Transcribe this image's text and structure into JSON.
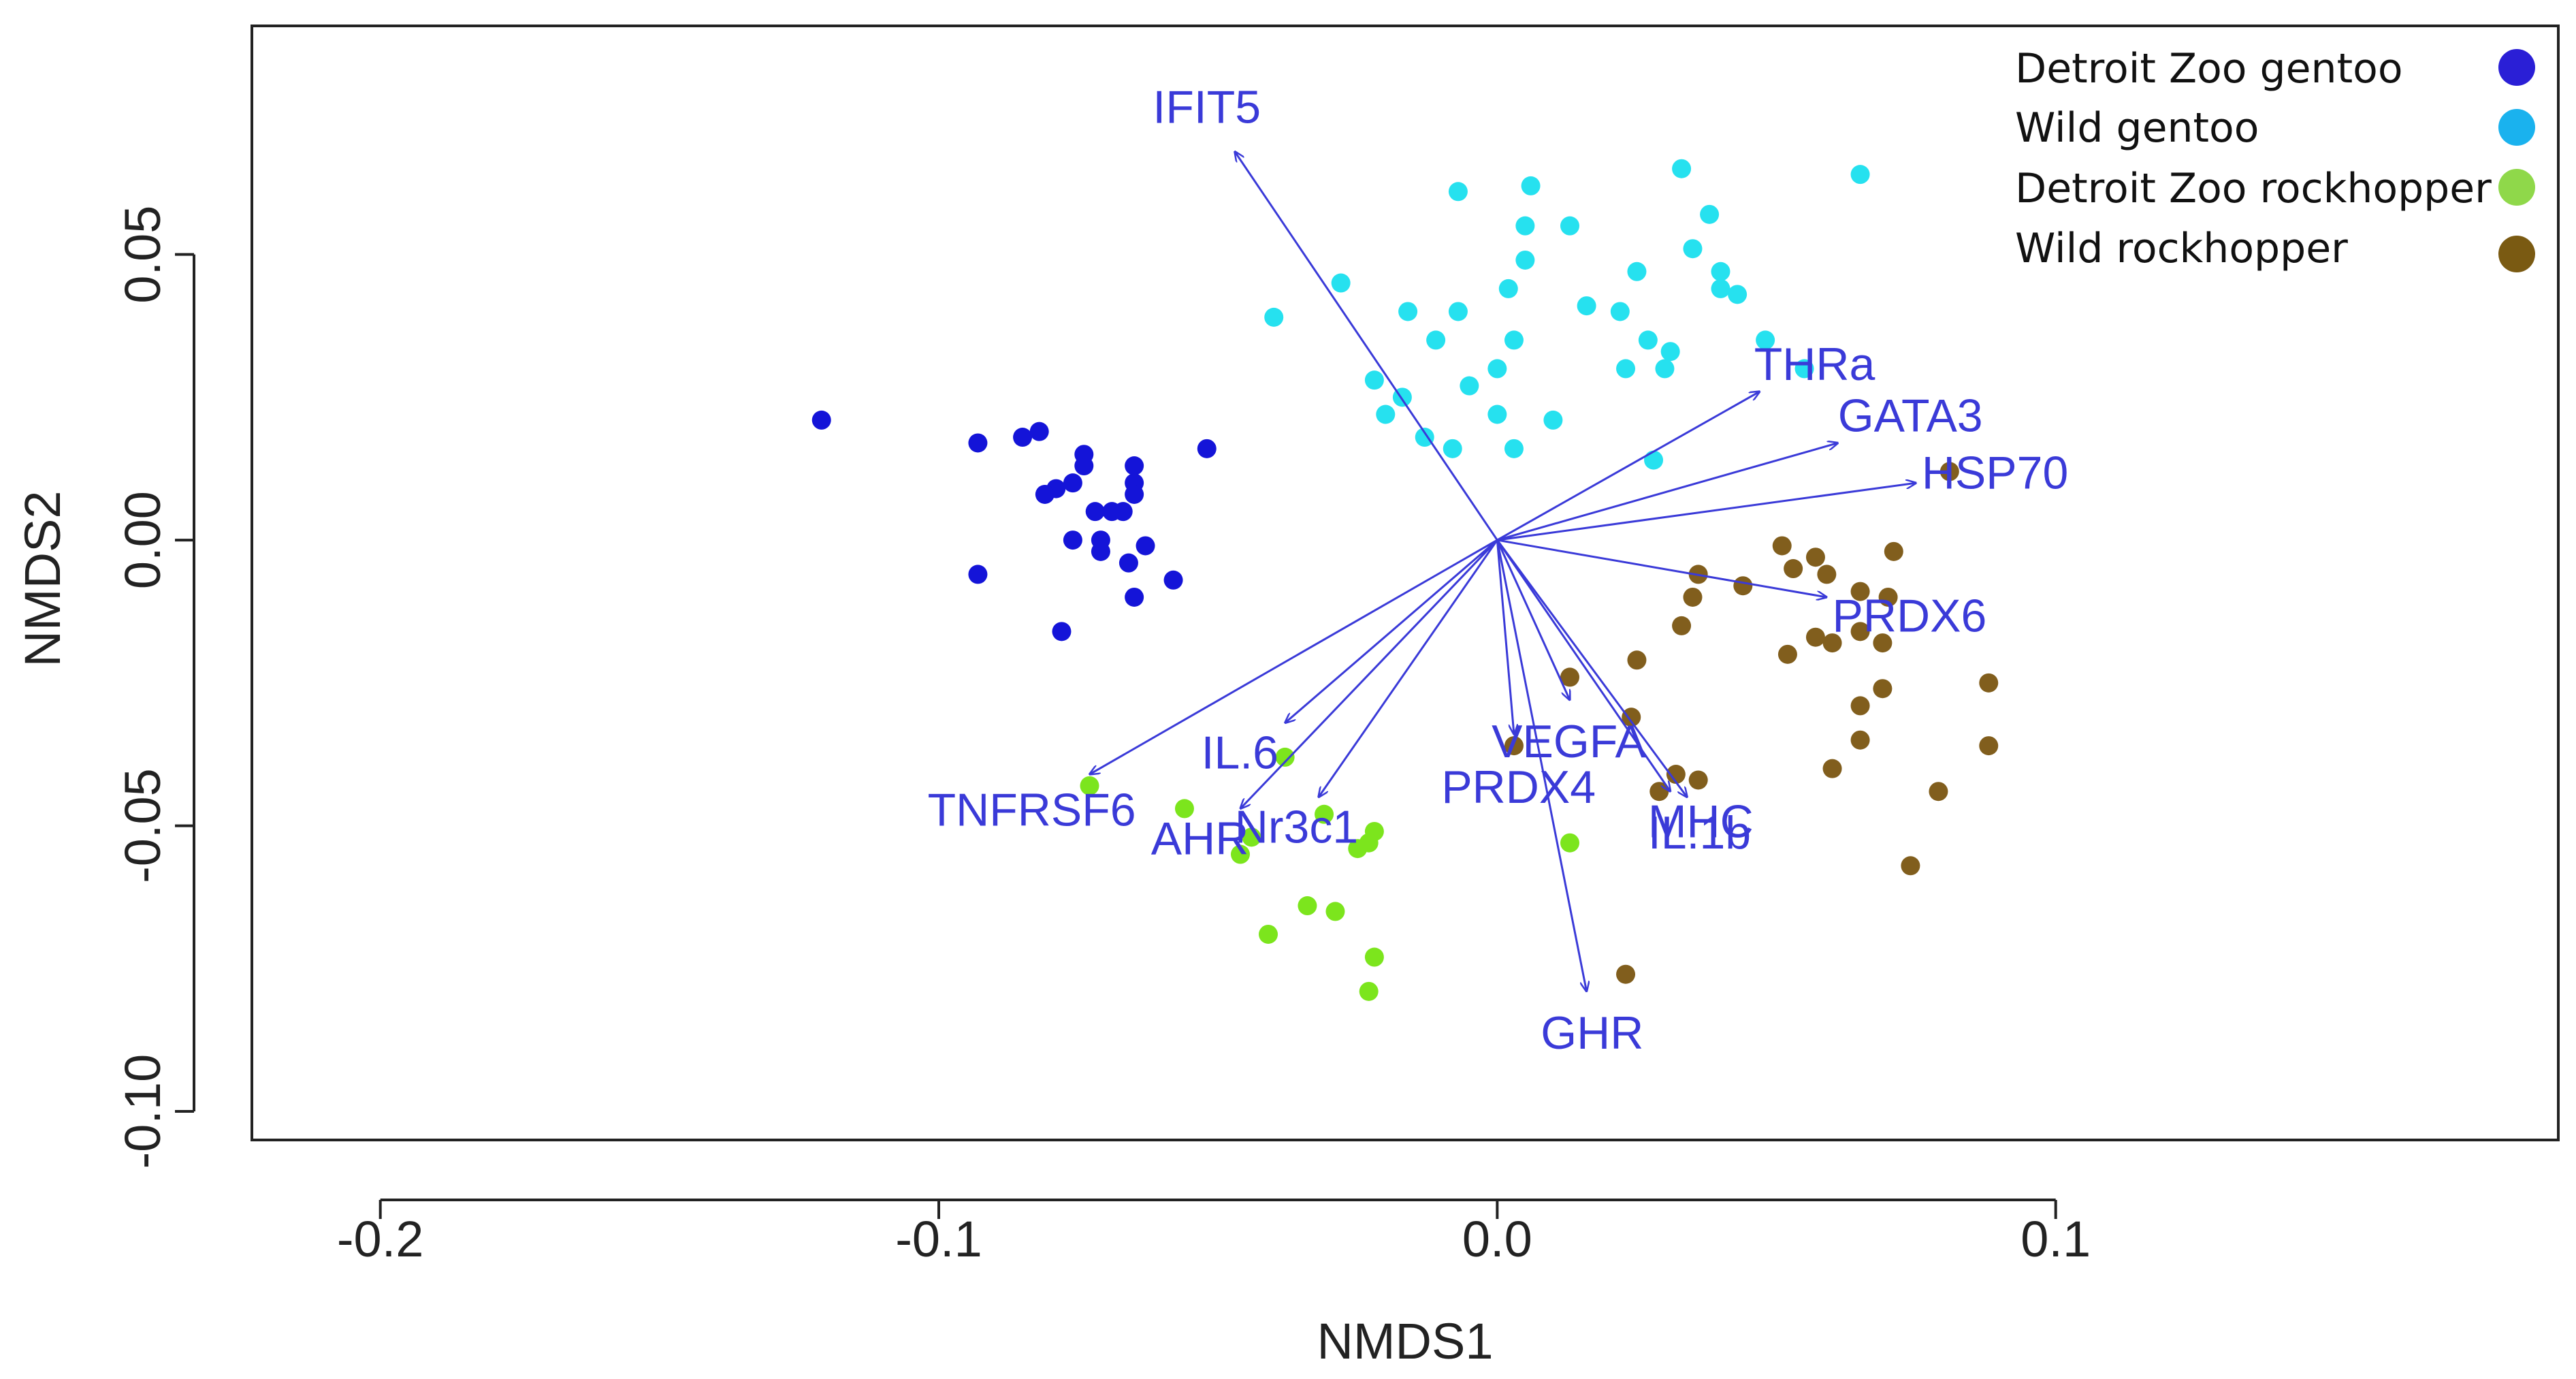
{
  "chart_data": {
    "type": "scatter",
    "xlabel": "NMDS1",
    "ylabel": "NMDS2",
    "xlim": [
      -0.223,
      0.19
    ],
    "ylim": [
      -0.105,
      0.09
    ],
    "xticks": [
      -0.2,
      -0.1,
      0.0,
      0.1
    ],
    "xtick_labels": [
      "-0.2",
      "-0.1",
      "0.0",
      "0.1"
    ],
    "yticks": [
      -0.1,
      -0.05,
      0.0,
      0.05
    ],
    "ytick_labels": [
      "-0.10",
      "-0.05",
      "0.00",
      "0.05"
    ],
    "grid": false,
    "legend_position": "top-right",
    "legend": [
      {
        "label": "Detroit Zoo gentoo",
        "color": "#2a1fd6"
      },
      {
        "label": "Wild gentoo",
        "color": "#1ab2ee"
      },
      {
        "label": "Detroit Zoo rockhopper",
        "color": "#8fd84a"
      },
      {
        "label": "Wild rockhopper",
        "color": "#7a5a12"
      }
    ],
    "series": [
      {
        "name": "Detroit Zoo gentoo",
        "color": "#1414d8",
        "points": [
          [
            -0.121,
            0.021
          ],
          [
            -0.093,
            0.017
          ],
          [
            -0.085,
            0.018
          ],
          [
            -0.082,
            0.019
          ],
          [
            -0.076,
            0.01
          ],
          [
            -0.079,
            0.009
          ],
          [
            -0.081,
            0.008
          ],
          [
            -0.074,
            0.015
          ],
          [
            -0.074,
            0.013
          ],
          [
            -0.065,
            0.013
          ],
          [
            -0.065,
            0.01
          ],
          [
            -0.065,
            0.008
          ],
          [
            -0.052,
            0.016
          ],
          [
            -0.069,
            0.005
          ],
          [
            -0.072,
            0.005
          ],
          [
            -0.067,
            0.005
          ],
          [
            -0.076,
            0.0
          ],
          [
            -0.071,
            0.0
          ],
          [
            -0.071,
            -0.002
          ],
          [
            -0.063,
            -0.001
          ],
          [
            -0.066,
            -0.004
          ],
          [
            -0.093,
            -0.006
          ],
          [
            -0.058,
            -0.007
          ],
          [
            -0.065,
            -0.01
          ],
          [
            -0.078,
            -0.016
          ]
        ]
      },
      {
        "name": "Wild gentoo",
        "color": "#26e1ef",
        "points": [
          [
            -0.007,
            0.061
          ],
          [
            0.006,
            0.062
          ],
          [
            0.033,
            0.065
          ],
          [
            0.065,
            0.064
          ],
          [
            0.038,
            0.057
          ],
          [
            0.005,
            0.055
          ],
          [
            0.013,
            0.055
          ],
          [
            0.035,
            0.051
          ],
          [
            0.005,
            0.049
          ],
          [
            0.025,
            0.047
          ],
          [
            0.04,
            0.047
          ],
          [
            -0.028,
            0.045
          ],
          [
            0.002,
            0.044
          ],
          [
            0.043,
            0.043
          ],
          [
            0.04,
            0.044
          ],
          [
            -0.016,
            0.04
          ],
          [
            -0.007,
            0.04
          ],
          [
            0.016,
            0.041
          ],
          [
            0.022,
            0.04
          ],
          [
            -0.04,
            0.039
          ],
          [
            -0.011,
            0.035
          ],
          [
            0.003,
            0.035
          ],
          [
            0.027,
            0.035
          ],
          [
            0.048,
            0.035
          ],
          [
            0.031,
            0.033
          ],
          [
            -0.022,
            0.028
          ],
          [
            -0.005,
            0.027
          ],
          [
            0.0,
            0.03
          ],
          [
            0.023,
            0.03
          ],
          [
            0.03,
            0.03
          ],
          [
            0.055,
            0.03
          ],
          [
            -0.017,
            0.025
          ],
          [
            -0.02,
            0.022
          ],
          [
            0.0,
            0.022
          ],
          [
            0.01,
            0.021
          ],
          [
            -0.013,
            0.018
          ],
          [
            -0.008,
            0.016
          ],
          [
            0.003,
            0.016
          ],
          [
            0.028,
            0.014
          ]
        ]
      },
      {
        "name": "Detroit Zoo rockhopper",
        "color": "#7ce51d",
        "points": [
          [
            -0.073,
            -0.043
          ],
          [
            -0.056,
            -0.047
          ],
          [
            -0.038,
            -0.038
          ],
          [
            -0.031,
            -0.048
          ],
          [
            -0.022,
            -0.051
          ],
          [
            -0.025,
            -0.054
          ],
          [
            -0.046,
            -0.055
          ],
          [
            0.013,
            -0.053
          ],
          [
            -0.044,
            -0.052
          ],
          [
            -0.023,
            -0.053
          ],
          [
            -0.034,
            -0.064
          ],
          [
            -0.029,
            -0.065
          ],
          [
            -0.041,
            -0.069
          ],
          [
            -0.022,
            -0.073
          ],
          [
            -0.023,
            -0.079
          ]
        ]
      },
      {
        "name": "Wild rockhopper",
        "color": "#815e1d",
        "points": [
          [
            0.081,
            0.012
          ],
          [
            0.051,
            -0.001
          ],
          [
            0.057,
            -0.003
          ],
          [
            0.071,
            -0.002
          ],
          [
            0.036,
            -0.006
          ],
          [
            0.053,
            -0.005
          ],
          [
            0.059,
            -0.006
          ],
          [
            0.044,
            -0.008
          ],
          [
            0.065,
            -0.009
          ],
          [
            0.07,
            -0.01
          ],
          [
            0.035,
            -0.01
          ],
          [
            0.033,
            -0.015
          ],
          [
            0.065,
            -0.016
          ],
          [
            0.057,
            -0.017
          ],
          [
            0.06,
            -0.018
          ],
          [
            0.069,
            -0.018
          ],
          [
            0.052,
            -0.02
          ],
          [
            0.025,
            -0.021
          ],
          [
            0.013,
            -0.024
          ],
          [
            0.088,
            -0.025
          ],
          [
            0.069,
            -0.026
          ],
          [
            0.065,
            -0.029
          ],
          [
            0.024,
            -0.031
          ],
          [
            0.065,
            -0.035
          ],
          [
            0.088,
            -0.036
          ],
          [
            0.003,
            -0.036
          ],
          [
            0.06,
            -0.04
          ],
          [
            0.032,
            -0.041
          ],
          [
            0.036,
            -0.042
          ],
          [
            0.029,
            -0.044
          ],
          [
            0.079,
            -0.044
          ],
          [
            0.074,
            -0.057
          ],
          [
            0.023,
            -0.076
          ]
        ]
      }
    ],
    "vectors": [
      {
        "label": "IFIT5",
        "end": [
          -0.047,
          0.068
        ],
        "label_pos": [
          -0.052,
          0.073
        ],
        "anchor": "middle"
      },
      {
        "label": "THRa",
        "end": [
          0.047,
          0.026
        ],
        "label_pos": [
          0.046,
          0.028
        ],
        "anchor": "start"
      },
      {
        "label": "GATA3",
        "end": [
          0.061,
          0.017
        ],
        "label_pos": [
          0.061,
          0.019
        ],
        "anchor": "start"
      },
      {
        "label": "HSP70",
        "end": [
          0.075,
          0.01
        ],
        "label_pos": [
          0.076,
          0.009
        ],
        "anchor": "start"
      },
      {
        "label": "PRDX6",
        "end": [
          0.059,
          -0.01
        ],
        "label_pos": [
          0.06,
          -0.016
        ],
        "anchor": "start"
      },
      {
        "label": "VEGFA",
        "end": [
          0.013,
          -0.028
        ],
        "label_pos": [
          -0.001,
          -0.038
        ],
        "anchor": "start"
      },
      {
        "label": "PRDX4",
        "end": [
          0.003,
          -0.034
        ],
        "label_pos": [
          -0.01,
          -0.046
        ],
        "anchor": "start"
      },
      {
        "label": "MHC",
        "end": [
          0.031,
          -0.044
        ],
        "label_pos": [
          0.027,
          -0.052
        ],
        "anchor": "start"
      },
      {
        "label": "IL.1b",
        "end": [
          0.034,
          -0.045
        ],
        "label_pos": [
          0.027,
          -0.054
        ],
        "anchor": "start"
      },
      {
        "label": "GHR",
        "end": [
          0.016,
          -0.079
        ],
        "label_pos": [
          0.017,
          -0.089
        ],
        "anchor": "middle"
      },
      {
        "label": "IL.6",
        "end": [
          -0.038,
          -0.032
        ],
        "label_pos": [
          -0.053,
          -0.04
        ],
        "anchor": "start"
      },
      {
        "label": "AHR",
        "end": [
          -0.046,
          -0.047
        ],
        "label_pos": [
          -0.062,
          -0.055
        ],
        "anchor": "start"
      },
      {
        "label": "Nr3c1",
        "end": [
          -0.032,
          -0.045
        ],
        "label_pos": [
          -0.047,
          -0.053
        ],
        "anchor": "start"
      },
      {
        "label": "TNFRSF6",
        "end": [
          -0.073,
          -0.041
        ],
        "label_pos": [
          -0.102,
          -0.05
        ],
        "anchor": "start"
      }
    ]
  }
}
